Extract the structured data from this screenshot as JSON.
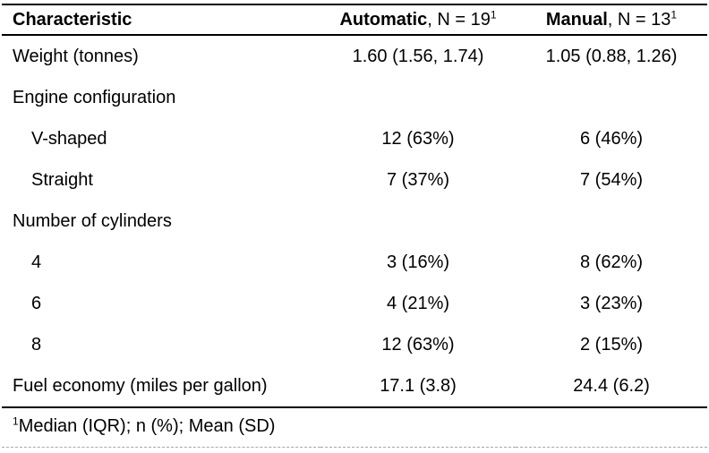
{
  "chart_data": {
    "type": "table",
    "title": "",
    "columns": [
      "Characteristic",
      "Automatic, N = 19",
      "Manual, N = 13"
    ],
    "header": {
      "characteristic": "Characteristic",
      "automatic_bold": "Automatic",
      "automatic_rest": ", N = 19",
      "automatic_sup": "1",
      "manual_bold": "Manual",
      "manual_rest": ", N = 13",
      "manual_sup": "1"
    },
    "rows": [
      {
        "label": "Weight (tonnes)",
        "indent": false,
        "automatic": "1.60 (1.56, 1.74)",
        "manual": "1.05 (0.88, 1.26)"
      },
      {
        "label": "Engine configuration",
        "indent": false,
        "automatic": "",
        "manual": ""
      },
      {
        "label": "V-shaped",
        "indent": true,
        "automatic": "12 (63%)",
        "manual": "6 (46%)"
      },
      {
        "label": "Straight",
        "indent": true,
        "automatic": "7 (37%)",
        "manual": "7 (54%)"
      },
      {
        "label": "Number of cylinders",
        "indent": false,
        "automatic": "",
        "manual": ""
      },
      {
        "label": "4",
        "indent": true,
        "automatic": "3 (16%)",
        "manual": "8 (62%)"
      },
      {
        "label": "6",
        "indent": true,
        "automatic": "4 (21%)",
        "manual": "3 (23%)"
      },
      {
        "label": "8",
        "indent": true,
        "automatic": "12 (63%)",
        "manual": "2 (15%)"
      },
      {
        "label": "Fuel economy (miles per gallon)",
        "indent": false,
        "automatic": "17.1 (3.8)",
        "manual": "24.4 (6.2)"
      }
    ],
    "footnote": {
      "sup": "1",
      "text": "Median (IQR); n (%); Mean (SD)"
    }
  },
  "colors": {
    "text": "#000000",
    "rule": "#000000",
    "bottom_dashed_rule": "#a6a6a6",
    "background": "#ffffff"
  }
}
